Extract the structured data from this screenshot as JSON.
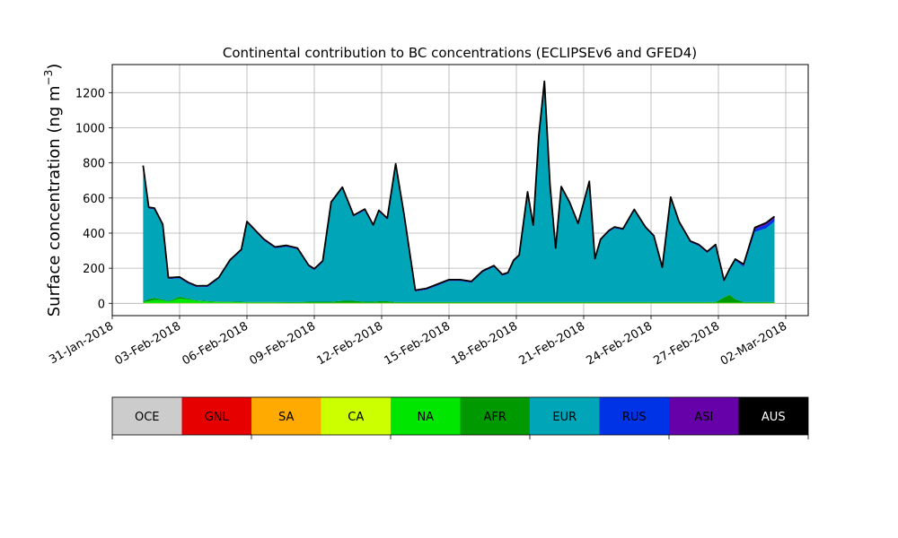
{
  "chart_data": {
    "type": "area",
    "title": "Continental contribution to BC concentrations (ECLIPSEv6 and GFED4)",
    "ylabel": "Surface concentration (ng m",
    "ylabel_unit_exp": "−3",
    "ylabel_close": ")",
    "xlabel": "",
    "ylim": [
      -70,
      1360
    ],
    "yticks": [
      0,
      200,
      400,
      600,
      800,
      1000,
      1200
    ],
    "xlim": [
      "2018-01-31",
      "2018-03-03"
    ],
    "xticks": [
      "31-Jan-2018",
      "03-Feb-2018",
      "06-Feb-2018",
      "09-Feb-2018",
      "12-Feb-2018",
      "15-Feb-2018",
      "18-Feb-2018",
      "21-Feb-2018",
      "24-Feb-2018",
      "27-Feb-2018",
      "02-Mar-2018"
    ],
    "xtick_dates": [
      "2018-01-31",
      "2018-02-03",
      "2018-02-06",
      "2018-02-09",
      "2018-02-12",
      "2018-02-15",
      "2018-02-18",
      "2018-02-21",
      "2018-02-24",
      "2018-02-27",
      "2018-03-02"
    ],
    "grid": true,
    "stacked": true,
    "x": [
      "2018-02-01 09:00",
      "2018-02-01 15:00",
      "2018-02-01 21:00",
      "2018-02-02 06:00",
      "2018-02-02 12:00",
      "2018-02-03 00:00",
      "2018-02-03 09:00",
      "2018-02-03 18:00",
      "2018-02-04 06:00",
      "2018-02-04 18:00",
      "2018-02-05 06:00",
      "2018-02-05 18:00",
      "2018-02-06 00:00",
      "2018-02-06 09:00",
      "2018-02-06 18:00",
      "2018-02-07 06:00",
      "2018-02-07 18:00",
      "2018-02-08 06:00",
      "2018-02-08 18:00",
      "2018-02-09 00:00",
      "2018-02-09 09:00",
      "2018-02-09 18:00",
      "2018-02-10 06:00",
      "2018-02-10 18:00",
      "2018-02-11 06:00",
      "2018-02-11 15:00",
      "2018-02-11 21:00",
      "2018-02-12 06:00",
      "2018-02-12 15:00",
      "2018-02-13 00:00",
      "2018-02-13 12:00",
      "2018-02-14 00:00",
      "2018-02-14 12:00",
      "2018-02-15 00:00",
      "2018-02-15 12:00",
      "2018-02-16 00:00",
      "2018-02-16 12:00",
      "2018-02-17 00:00",
      "2018-02-17 09:00",
      "2018-02-17 15:00",
      "2018-02-17 21:00",
      "2018-02-18 03:00",
      "2018-02-18 12:00",
      "2018-02-18 18:00",
      "2018-02-19 00:00",
      "2018-02-19 06:00",
      "2018-02-19 12:00",
      "2018-02-19 18:00",
      "2018-02-20 00:00",
      "2018-02-20 09:00",
      "2018-02-20 18:00",
      "2018-02-21 06:00",
      "2018-02-21 12:00",
      "2018-02-21 18:00",
      "2018-02-22 03:00",
      "2018-02-22 09:00",
      "2018-02-22 18:00",
      "2018-02-23 06:00",
      "2018-02-23 18:00",
      "2018-02-24 03:00",
      "2018-02-24 12:00",
      "2018-02-24 21:00",
      "2018-02-25 06:00",
      "2018-02-25 18:00",
      "2018-02-26 03:00",
      "2018-02-26 12:00",
      "2018-02-26 21:00",
      "2018-02-27 06:00",
      "2018-02-27 12:00",
      "2018-02-27 18:00",
      "2018-02-28 03:00",
      "2018-02-28 15:00",
      "2018-03-01 03:00",
      "2018-03-01 12:00"
    ],
    "series": [
      {
        "name": "OCE",
        "color": "#cccccc",
        "values": [
          0,
          0,
          0,
          0,
          0,
          0,
          0,
          0,
          0,
          0,
          0,
          0,
          0,
          0,
          0,
          0,
          0,
          0,
          0,
          0,
          0,
          0,
          0,
          0,
          0,
          0,
          0,
          0,
          0,
          0,
          0,
          0,
          0,
          0,
          0,
          0,
          0,
          0,
          0,
          0,
          0,
          0,
          0,
          0,
          0,
          0,
          0,
          0,
          0,
          0,
          0,
          0,
          0,
          0,
          0,
          0,
          0,
          0,
          0,
          0,
          0,
          0,
          0,
          0,
          0,
          0,
          0,
          0,
          0,
          0,
          0,
          0,
          0,
          0
        ]
      },
      {
        "name": "GNL",
        "color": "#e60000",
        "values": [
          0,
          0,
          0,
          0,
          0,
          0,
          0,
          0,
          0,
          0,
          0,
          0,
          0,
          0,
          0,
          0,
          0,
          0,
          0,
          0,
          0,
          0,
          0,
          0,
          0,
          0,
          0,
          0,
          0,
          0,
          0,
          0,
          0,
          0,
          0,
          0,
          0,
          0,
          0,
          0,
          0,
          0,
          0,
          0,
          0,
          0,
          0,
          0,
          0,
          0,
          0,
          0,
          0,
          0,
          0,
          0,
          0,
          0,
          0,
          0,
          0,
          0,
          0,
          0,
          0,
          0,
          0,
          0,
          0,
          0,
          0,
          0,
          0,
          0
        ]
      },
      {
        "name": "SA",
        "color": "#ffaa00",
        "values": [
          0,
          0,
          0,
          0,
          0,
          0,
          0,
          0,
          0,
          0,
          0,
          0,
          0,
          0,
          0,
          0,
          0,
          0,
          0,
          0,
          0,
          0,
          0,
          0,
          0,
          0,
          0,
          0,
          0,
          0,
          0,
          0,
          0,
          0,
          0,
          0,
          0,
          0,
          0,
          0,
          0,
          0,
          0,
          0,
          0,
          0,
          0,
          0,
          0,
          0,
          0,
          0,
          0,
          0,
          0,
          0,
          0,
          0,
          0,
          0,
          0,
          0,
          0,
          0,
          0,
          0,
          0,
          0,
          0,
          0,
          0,
          0,
          0,
          0
        ]
      },
      {
        "name": "CA",
        "color": "#ccff00",
        "values": [
          2,
          2,
          2,
          2,
          2,
          2,
          2,
          2,
          2,
          2,
          2,
          2,
          2,
          2,
          2,
          2,
          2,
          2,
          2,
          2,
          2,
          2,
          2,
          2,
          2,
          2,
          2,
          2,
          2,
          2,
          2,
          2,
          2,
          2,
          2,
          2,
          2,
          2,
          2,
          2,
          2,
          2,
          2,
          2,
          2,
          2,
          2,
          2,
          2,
          2,
          2,
          2,
          2,
          2,
          2,
          2,
          2,
          2,
          2,
          2,
          2,
          2,
          2,
          2,
          2,
          2,
          2,
          2,
          2,
          2,
          2,
          2,
          2,
          2
        ]
      },
      {
        "name": "NA",
        "color": "#00e600",
        "values": [
          5,
          10,
          18,
          15,
          8,
          25,
          20,
          12,
          8,
          5,
          5,
          4,
          3,
          3,
          3,
          3,
          2,
          2,
          2,
          2,
          2,
          2,
          2,
          2,
          2,
          2,
          2,
          2,
          2,
          2,
          2,
          2,
          2,
          2,
          2,
          2,
          2,
          2,
          2,
          2,
          2,
          2,
          2,
          2,
          2,
          2,
          2,
          2,
          2,
          2,
          2,
          2,
          2,
          2,
          2,
          2,
          2,
          2,
          2,
          2,
          2,
          2,
          2,
          2,
          2,
          2,
          2,
          2,
          2,
          2,
          2,
          2,
          2,
          2
        ]
      },
      {
        "name": "AFR",
        "color": "#009900",
        "values": [
          5,
          12,
          10,
          5,
          3,
          10,
          5,
          3,
          3,
          3,
          3,
          3,
          3,
          3,
          3,
          3,
          3,
          3,
          5,
          5,
          5,
          5,
          10,
          10,
          5,
          5,
          8,
          8,
          3,
          3,
          3,
          3,
          3,
          3,
          3,
          3,
          3,
          3,
          3,
          3,
          3,
          3,
          3,
          3,
          3,
          3,
          3,
          3,
          3,
          3,
          3,
          3,
          3,
          3,
          3,
          3,
          3,
          3,
          3,
          3,
          3,
          3,
          3,
          3,
          3,
          3,
          3,
          30,
          45,
          20,
          3,
          3,
          3,
          3
        ]
      },
      {
        "name": "EUR",
        "color": "#00a5b8",
        "values": [
          765,
          515,
          505,
          420,
          125,
          105,
          85,
          75,
          80,
          130,
          230,
          290,
          450,
          400,
          350,
          305,
          315,
          300,
          200,
          180,
          225,
          560,
          640,
          480,
          520,
          430,
          510,
          465,
          780,
          490,
          60,
          70,
          95,
          120,
          120,
          110,
          170,
          200,
          150,
          160,
          230,
          260,
          620,
          430,
          940,
          1250,
          660,
          300,
          650,
          560,
          440,
          680,
          240,
          350,
          400,
          420,
          410,
          520,
          420,
          370,
          190,
          590,
          450,
          340,
          320,
          280,
          320,
          90,
          140,
          220,
          200,
          400,
          420,
          460
        ]
      },
      {
        "name": "RUS",
        "color": "#0033e6",
        "values": [
          3,
          3,
          3,
          3,
          3,
          3,
          3,
          3,
          3,
          3,
          3,
          3,
          3,
          3,
          3,
          3,
          3,
          3,
          3,
          3,
          3,
          3,
          3,
          3,
          3,
          3,
          3,
          3,
          3,
          3,
          3,
          3,
          3,
          3,
          3,
          3,
          3,
          3,
          3,
          3,
          3,
          3,
          3,
          3,
          3,
          3,
          3,
          3,
          3,
          3,
          3,
          3,
          3,
          3,
          3,
          3,
          3,
          3,
          3,
          3,
          3,
          3,
          3,
          3,
          3,
          3,
          3,
          3,
          3,
          3,
          8,
          15,
          20,
          18
        ]
      },
      {
        "name": "ASI",
        "color": "#6600a8",
        "values": [
          5,
          5,
          5,
          5,
          5,
          5,
          5,
          5,
          5,
          5,
          5,
          5,
          5,
          5,
          5,
          5,
          5,
          5,
          5,
          5,
          5,
          5,
          5,
          5,
          5,
          5,
          5,
          5,
          5,
          5,
          5,
          5,
          5,
          5,
          5,
          5,
          5,
          5,
          5,
          5,
          5,
          5,
          5,
          5,
          5,
          5,
          5,
          5,
          5,
          5,
          5,
          5,
          5,
          5,
          5,
          5,
          5,
          5,
          5,
          5,
          5,
          5,
          5,
          5,
          5,
          5,
          5,
          5,
          5,
          5,
          8,
          10,
          12,
          10
        ]
      },
      {
        "name": "AUS",
        "color": "#000000",
        "values": [
          0,
          0,
          0,
          0,
          0,
          0,
          0,
          0,
          0,
          0,
          0,
          0,
          0,
          0,
          0,
          0,
          0,
          0,
          0,
          0,
          0,
          0,
          0,
          0,
          0,
          0,
          0,
          0,
          0,
          0,
          0,
          0,
          0,
          0,
          0,
          0,
          0,
          0,
          0,
          0,
          0,
          0,
          0,
          0,
          0,
          0,
          0,
          0,
          0,
          0,
          0,
          0,
          0,
          0,
          0,
          0,
          0,
          0,
          0,
          0,
          0,
          0,
          0,
          0,
          0,
          0,
          0,
          0,
          0,
          0,
          0,
          0,
          0,
          0
        ]
      }
    ],
    "legend": {
      "placement": "bottom",
      "labels": [
        "OCE",
        "GNL",
        "SA",
        "CA",
        "NA",
        "AFR",
        "EUR",
        "RUS",
        "ASI",
        "AUS"
      ],
      "colors": [
        "#cccccc",
        "#e60000",
        "#ffaa00",
        "#ccff00",
        "#00e600",
        "#009900",
        "#00a5b8",
        "#0033e6",
        "#6600a8",
        "#000000"
      ],
      "text_colors": [
        "#000000",
        "#000000",
        "#000000",
        "#000000",
        "#000000",
        "#000000",
        "#000000",
        "#000000",
        "#000000",
        "#ffffff"
      ]
    }
  }
}
